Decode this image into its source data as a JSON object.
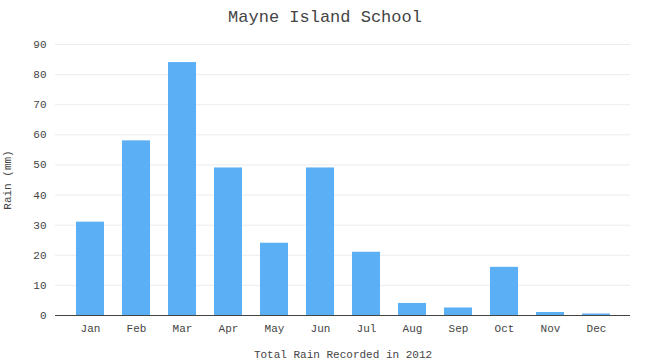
{
  "chart_data": {
    "type": "bar",
    "title": "Mayne Island School",
    "xlabel": "Total Rain Recorded in 2012",
    "ylabel": "Rain (mm)",
    "categories": [
      "Jan",
      "Feb",
      "Mar",
      "Apr",
      "May",
      "Jun",
      "Jul",
      "Aug",
      "Sep",
      "Oct",
      "Nov",
      "Dec"
    ],
    "values": [
      31,
      58,
      84,
      49,
      24,
      49,
      21,
      4,
      2.5,
      16,
      1,
      0.5
    ],
    "color": "#5aaff5",
    "ylim": [
      0,
      90
    ],
    "yticks": [
      0,
      10,
      20,
      30,
      40,
      50,
      60,
      70,
      80,
      90
    ],
    "grid": true
  }
}
